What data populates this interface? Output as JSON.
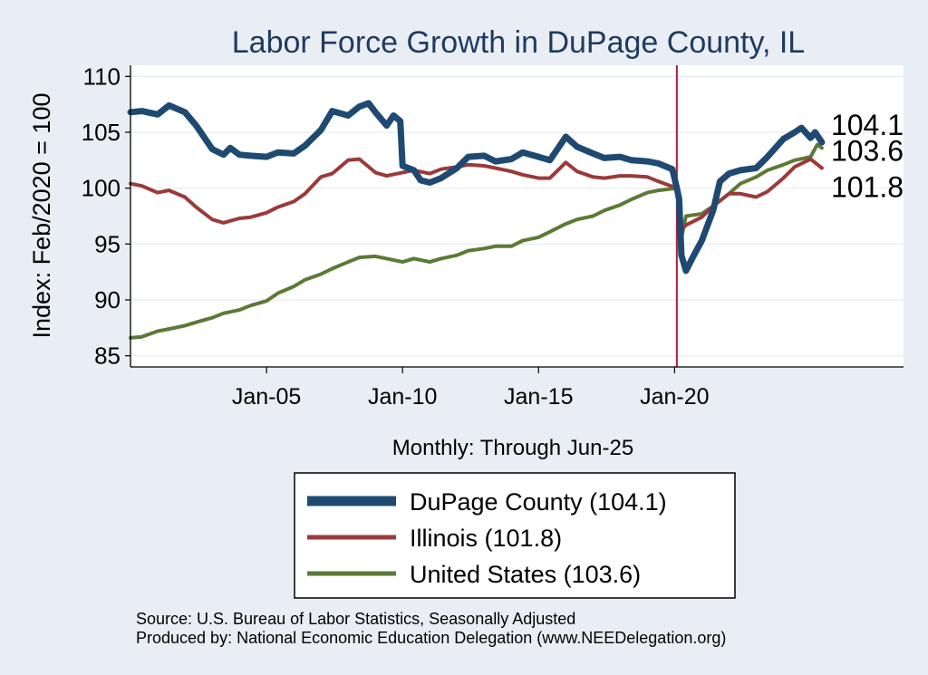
{
  "chart_data": {
    "type": "line",
    "title": "Labor Force Growth in DuPage  County, IL",
    "ylabel": "Index: Feb/2020 = 100",
    "xlabel": "Monthly: Through Jun-25",
    "ylim": [
      84,
      111
    ],
    "xlim": [
      "2000-01",
      "2028-06"
    ],
    "yticks": [
      85,
      90,
      95,
      100,
      105,
      110
    ],
    "xticks": [
      {
        "label": "Jan-05",
        "date": "2005-01"
      },
      {
        "label": "Jan-10",
        "date": "2010-01"
      },
      {
        "label": "Jan-15",
        "date": "2015-01"
      },
      {
        "label": "Jan-20",
        "date": "2020-01"
      }
    ],
    "vline": {
      "date": "2020-02",
      "color": "#b01a3e"
    },
    "grid": true,
    "legend_position": "bottom",
    "series": [
      {
        "name": "DuPage  County (104.1)",
        "color": "#1e4a72",
        "end_label": "104.1",
        "points": [
          [
            "2000-01",
            106.8
          ],
          [
            "2000-06",
            106.9
          ],
          [
            "2001-01",
            106.6
          ],
          [
            "2001-06",
            107.4
          ],
          [
            "2002-01",
            106.8
          ],
          [
            "2002-06",
            105.6
          ],
          [
            "2003-01",
            103.5
          ],
          [
            "2003-06",
            103.0
          ],
          [
            "2003-09",
            103.6
          ],
          [
            "2004-01",
            103.0
          ],
          [
            "2004-06",
            102.9
          ],
          [
            "2005-01",
            102.8
          ],
          [
            "2005-06",
            103.2
          ],
          [
            "2006-01",
            103.1
          ],
          [
            "2006-06",
            103.8
          ],
          [
            "2007-01",
            105.2
          ],
          [
            "2007-06",
            106.9
          ],
          [
            "2008-01",
            106.5
          ],
          [
            "2008-06",
            107.3
          ],
          [
            "2008-10",
            107.6
          ],
          [
            "2009-01",
            106.8
          ],
          [
            "2009-06",
            105.6
          ],
          [
            "2009-09",
            106.5
          ],
          [
            "2009-12",
            106.0
          ],
          [
            "2010-01",
            102.0
          ],
          [
            "2010-06",
            101.6
          ],
          [
            "2010-09",
            100.7
          ],
          [
            "2011-01",
            100.5
          ],
          [
            "2011-06",
            100.9
          ],
          [
            "2012-01",
            101.8
          ],
          [
            "2012-06",
            102.8
          ],
          [
            "2013-01",
            102.9
          ],
          [
            "2013-06",
            102.4
          ],
          [
            "2014-01",
            102.6
          ],
          [
            "2014-06",
            103.2
          ],
          [
            "2015-01",
            102.8
          ],
          [
            "2015-06",
            102.5
          ],
          [
            "2016-01",
            104.6
          ],
          [
            "2016-06",
            103.7
          ],
          [
            "2017-01",
            103.1
          ],
          [
            "2017-06",
            102.7
          ],
          [
            "2018-01",
            102.8
          ],
          [
            "2018-06",
            102.5
          ],
          [
            "2019-01",
            102.4
          ],
          [
            "2019-06",
            102.2
          ],
          [
            "2019-12",
            101.7
          ],
          [
            "2020-02",
            100.0
          ],
          [
            "2020-03",
            99.0
          ],
          [
            "2020-04",
            94.0
          ],
          [
            "2020-06",
            92.6
          ],
          [
            "2020-09",
            93.8
          ],
          [
            "2021-01",
            95.3
          ],
          [
            "2021-06",
            98.0
          ],
          [
            "2021-09",
            100.6
          ],
          [
            "2022-01",
            101.3
          ],
          [
            "2022-06",
            101.6
          ],
          [
            "2023-01",
            101.8
          ],
          [
            "2023-06",
            102.8
          ],
          [
            "2024-01",
            104.4
          ],
          [
            "2024-06",
            105.0
          ],
          [
            "2024-09",
            105.4
          ],
          [
            "2025-01",
            104.5
          ],
          [
            "2025-03",
            105.0
          ],
          [
            "2025-06",
            104.1
          ]
        ]
      },
      {
        "name": "Illinois (101.8)",
        "color": "#9b3a3a",
        "end_label": "101.8",
        "points": [
          [
            "2000-01",
            100.4
          ],
          [
            "2000-06",
            100.2
          ],
          [
            "2001-01",
            99.6
          ],
          [
            "2001-06",
            99.8
          ],
          [
            "2002-01",
            99.2
          ],
          [
            "2002-06",
            98.3
          ],
          [
            "2003-01",
            97.2
          ],
          [
            "2003-06",
            96.9
          ],
          [
            "2004-01",
            97.3
          ],
          [
            "2004-06",
            97.4
          ],
          [
            "2005-01",
            97.8
          ],
          [
            "2005-06",
            98.3
          ],
          [
            "2006-01",
            98.8
          ],
          [
            "2006-06",
            99.5
          ],
          [
            "2007-01",
            101.0
          ],
          [
            "2007-06",
            101.3
          ],
          [
            "2008-01",
            102.5
          ],
          [
            "2008-06",
            102.6
          ],
          [
            "2009-01",
            101.4
          ],
          [
            "2009-06",
            101.1
          ],
          [
            "2010-01",
            101.4
          ],
          [
            "2010-06",
            101.6
          ],
          [
            "2011-01",
            101.3
          ],
          [
            "2011-06",
            101.7
          ],
          [
            "2012-01",
            101.9
          ],
          [
            "2012-06",
            102.1
          ],
          [
            "2013-01",
            102.0
          ],
          [
            "2013-06",
            101.8
          ],
          [
            "2014-01",
            101.5
          ],
          [
            "2014-06",
            101.2
          ],
          [
            "2015-01",
            100.9
          ],
          [
            "2015-06",
            100.9
          ],
          [
            "2016-01",
            102.3
          ],
          [
            "2016-06",
            101.5
          ],
          [
            "2017-01",
            101.0
          ],
          [
            "2017-06",
            100.9
          ],
          [
            "2018-01",
            101.1
          ],
          [
            "2018-06",
            101.1
          ],
          [
            "2019-01",
            101.0
          ],
          [
            "2019-06",
            100.6
          ],
          [
            "2020-02",
            100.0
          ],
          [
            "2020-04",
            96.3
          ],
          [
            "2020-06",
            96.7
          ],
          [
            "2021-01",
            97.4
          ],
          [
            "2021-06",
            98.4
          ],
          [
            "2022-01",
            99.5
          ],
          [
            "2022-06",
            99.5
          ],
          [
            "2023-01",
            99.2
          ],
          [
            "2023-06",
            99.7
          ],
          [
            "2024-01",
            100.9
          ],
          [
            "2024-06",
            101.9
          ],
          [
            "2025-01",
            102.6
          ],
          [
            "2025-06",
            101.8
          ]
        ]
      },
      {
        "name": "United States (103.6)",
        "color": "#5b7a35",
        "end_label": "103.6",
        "points": [
          [
            "2000-01",
            86.6
          ],
          [
            "2000-06",
            86.7
          ],
          [
            "2001-01",
            87.2
          ],
          [
            "2001-06",
            87.4
          ],
          [
            "2002-01",
            87.7
          ],
          [
            "2002-06",
            88.0
          ],
          [
            "2003-01",
            88.4
          ],
          [
            "2003-06",
            88.8
          ],
          [
            "2004-01",
            89.1
          ],
          [
            "2004-06",
            89.5
          ],
          [
            "2005-01",
            89.9
          ],
          [
            "2005-06",
            90.6
          ],
          [
            "2006-01",
            91.2
          ],
          [
            "2006-06",
            91.8
          ],
          [
            "2007-01",
            92.3
          ],
          [
            "2007-06",
            92.8
          ],
          [
            "2008-01",
            93.4
          ],
          [
            "2008-06",
            93.8
          ],
          [
            "2009-01",
            93.9
          ],
          [
            "2009-06",
            93.7
          ],
          [
            "2010-01",
            93.4
          ],
          [
            "2010-06",
            93.7
          ],
          [
            "2011-01",
            93.4
          ],
          [
            "2011-06",
            93.7
          ],
          [
            "2012-01",
            94.0
          ],
          [
            "2012-06",
            94.4
          ],
          [
            "2013-01",
            94.6
          ],
          [
            "2013-06",
            94.8
          ],
          [
            "2014-01",
            94.8
          ],
          [
            "2014-06",
            95.3
          ],
          [
            "2015-01",
            95.6
          ],
          [
            "2015-06",
            96.1
          ],
          [
            "2016-01",
            96.8
          ],
          [
            "2016-06",
            97.2
          ],
          [
            "2017-01",
            97.5
          ],
          [
            "2017-06",
            98.0
          ],
          [
            "2018-01",
            98.5
          ],
          [
            "2018-06",
            99.0
          ],
          [
            "2019-01",
            99.6
          ],
          [
            "2019-06",
            99.8
          ],
          [
            "2020-02",
            100.0
          ],
          [
            "2020-04",
            95.5
          ],
          [
            "2020-06",
            97.5
          ],
          [
            "2021-01",
            97.7
          ],
          [
            "2021-06",
            98.4
          ],
          [
            "2022-01",
            99.5
          ],
          [
            "2022-06",
            100.4
          ],
          [
            "2023-01",
            101.0
          ],
          [
            "2023-06",
            101.6
          ],
          [
            "2024-01",
            102.1
          ],
          [
            "2024-06",
            102.5
          ],
          [
            "2025-01",
            102.8
          ],
          [
            "2025-04",
            103.9
          ],
          [
            "2025-06",
            103.6
          ]
        ]
      }
    ],
    "source_lines": [
      "Source: U.S. Bureau of Labor Statistics, Seasonally Adjusted",
      "Produced by: National Economic Education Delegation (www.NEEDelegation.org)"
    ]
  }
}
